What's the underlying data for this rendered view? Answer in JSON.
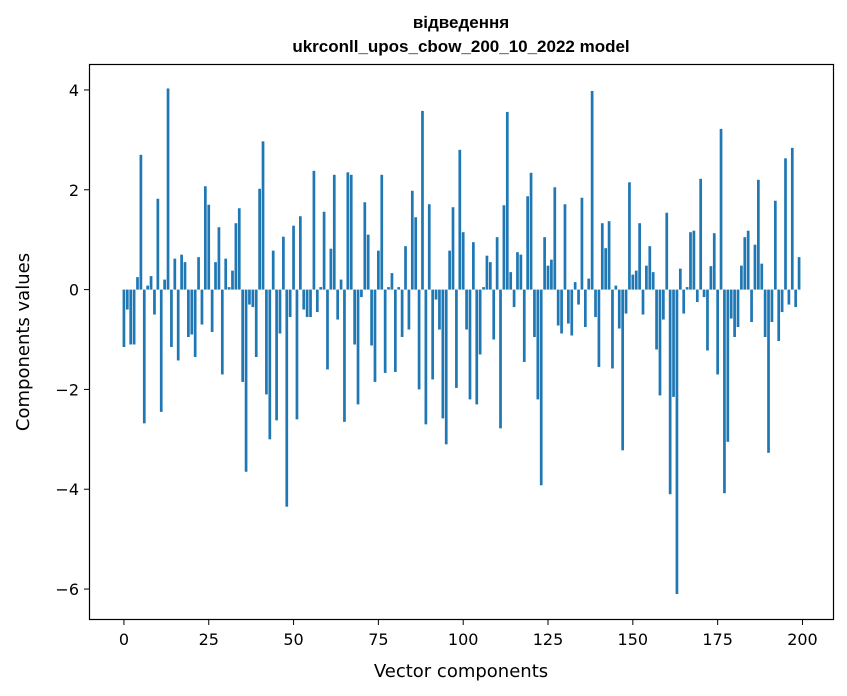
{
  "chart_data": {
    "type": "bar",
    "title": "відведення",
    "subtitle": "ukrconll_upos_cbow_200_10_2022 model",
    "xlabel": "Vector components",
    "ylabel": "Components values",
    "xlim": [
      -10,
      209
    ],
    "ylim": [
      -6.6,
      4.5
    ],
    "xticks": [
      0,
      25,
      50,
      75,
      100,
      125,
      150,
      175,
      200
    ],
    "yticks": [
      -6,
      -4,
      -2,
      0,
      2,
      4
    ],
    "ytick_labels": [
      "−6",
      "−4",
      "−2",
      "0",
      "2",
      "4"
    ],
    "bar_color": "#1f77b4",
    "x": [
      0,
      1,
      2,
      3,
      4,
      5,
      6,
      7,
      8,
      9,
      10,
      11,
      12,
      13,
      14,
      15,
      16,
      17,
      18,
      19,
      20,
      21,
      22,
      23,
      24,
      25,
      26,
      27,
      28,
      29,
      30,
      31,
      32,
      33,
      34,
      35,
      36,
      37,
      38,
      39,
      40,
      41,
      42,
      43,
      44,
      45,
      46,
      47,
      48,
      49,
      50,
      51,
      52,
      53,
      54,
      55,
      56,
      57,
      58,
      59,
      60,
      61,
      62,
      63,
      64,
      65,
      66,
      67,
      68,
      69,
      70,
      71,
      72,
      73,
      74,
      75,
      76,
      77,
      78,
      79,
      80,
      81,
      82,
      83,
      84,
      85,
      86,
      87,
      88,
      89,
      90,
      91,
      92,
      93,
      94,
      95,
      96,
      97,
      98,
      99,
      100,
      101,
      102,
      103,
      104,
      105,
      106,
      107,
      108,
      109,
      110,
      111,
      112,
      113,
      114,
      115,
      116,
      117,
      118,
      119,
      120,
      121,
      122,
      123,
      124,
      125,
      126,
      127,
      128,
      129,
      130,
      131,
      132,
      133,
      134,
      135,
      136,
      137,
      138,
      139,
      140,
      141,
      142,
      143,
      144,
      145,
      146,
      147,
      148,
      149,
      150,
      151,
      152,
      153,
      154,
      155,
      156,
      157,
      158,
      159,
      160,
      161,
      162,
      163,
      164,
      165,
      166,
      167,
      168,
      169,
      170,
      171,
      172,
      173,
      174,
      175,
      176,
      177,
      178,
      179,
      180,
      181,
      182,
      183,
      184,
      185,
      186,
      187,
      188,
      189,
      190,
      191,
      192,
      193,
      194,
      195,
      196,
      197,
      198,
      199
    ],
    "values": [
      -1.15,
      -0.4,
      -1.1,
      -1.1,
      0.25,
      2.7,
      -2.68,
      0.08,
      0.27,
      -0.5,
      1.82,
      -2.45,
      0.2,
      4.03,
      -1.15,
      0.62,
      -1.42,
      0.7,
      0.55,
      -0.95,
      -0.9,
      -1.35,
      0.65,
      -0.7,
      2.07,
      1.7,
      -0.85,
      0.55,
      1.25,
      -1.7,
      0.62,
      0.05,
      0.38,
      1.33,
      1.63,
      -1.85,
      -3.65,
      -0.3,
      -0.35,
      -1.35,
      2.02,
      2.97,
      -2.1,
      -3.0,
      0.78,
      -2.62,
      -0.88,
      1.06,
      -4.35,
      -0.55,
      1.28,
      -2.6,
      1.47,
      -0.4,
      -0.55,
      -0.55,
      2.38,
      -0.45,
      0.05,
      1.56,
      -1.6,
      0.82,
      2.3,
      -0.6,
      0.2,
      -2.65,
      2.35,
      2.3,
      -1.1,
      -2.3,
      -0.15,
      1.75,
      1.1,
      -1.12,
      -1.85,
      0.78,
      2.3,
      -1.67,
      0.05,
      0.33,
      -1.65,
      0.05,
      -0.95,
      0.87,
      -0.8,
      1.98,
      1.45,
      -2.0,
      3.58,
      -2.7,
      1.71,
      -1.8,
      -0.2,
      -0.8,
      -2.58,
      -3.1,
      0.78,
      1.65,
      -1.97,
      2.8,
      1.15,
      -0.8,
      -2.2,
      0.95,
      -2.3,
      -1.3,
      0.05,
      0.68,
      0.55,
      -1.0,
      1.05,
      -2.78,
      1.69,
      3.56,
      0.35,
      -0.35,
      0.75,
      0.7,
      -1.45,
      1.87,
      2.34,
      -0.95,
      -2.2,
      -3.92,
      1.05,
      0.48,
      0.6,
      2.05,
      -0.72,
      -0.88,
      1.71,
      -0.68,
      -0.92,
      0.15,
      -0.3,
      1.84,
      -0.75,
      0.22,
      3.98,
      -0.55,
      -1.55,
      1.33,
      0.83,
      1.37,
      -1.58,
      0.08,
      -0.78,
      -3.22,
      -0.48,
      2.15,
      0.3,
      0.38,
      1.33,
      -0.5,
      0.48,
      0.87,
      0.35,
      -1.2,
      -2.12,
      -0.6,
      1.54,
      -4.1,
      -2.15,
      -6.1,
      0.42,
      -0.48,
      0.05,
      1.15,
      1.18,
      -0.25,
      2.22,
      -0.15,
      -1.22,
      0.47,
      1.13,
      -1.7,
      3.22,
      -4.08,
      -3.05,
      -0.58,
      -0.95,
      -0.75,
      0.48,
      1.05,
      1.18,
      -0.65,
      0.9,
      2.2,
      0.52,
      -0.95,
      -3.27,
      -0.65,
      1.78,
      -1.03,
      -0.45,
      2.63,
      -0.3,
      2.84,
      -0.35,
      0.65
    ]
  }
}
